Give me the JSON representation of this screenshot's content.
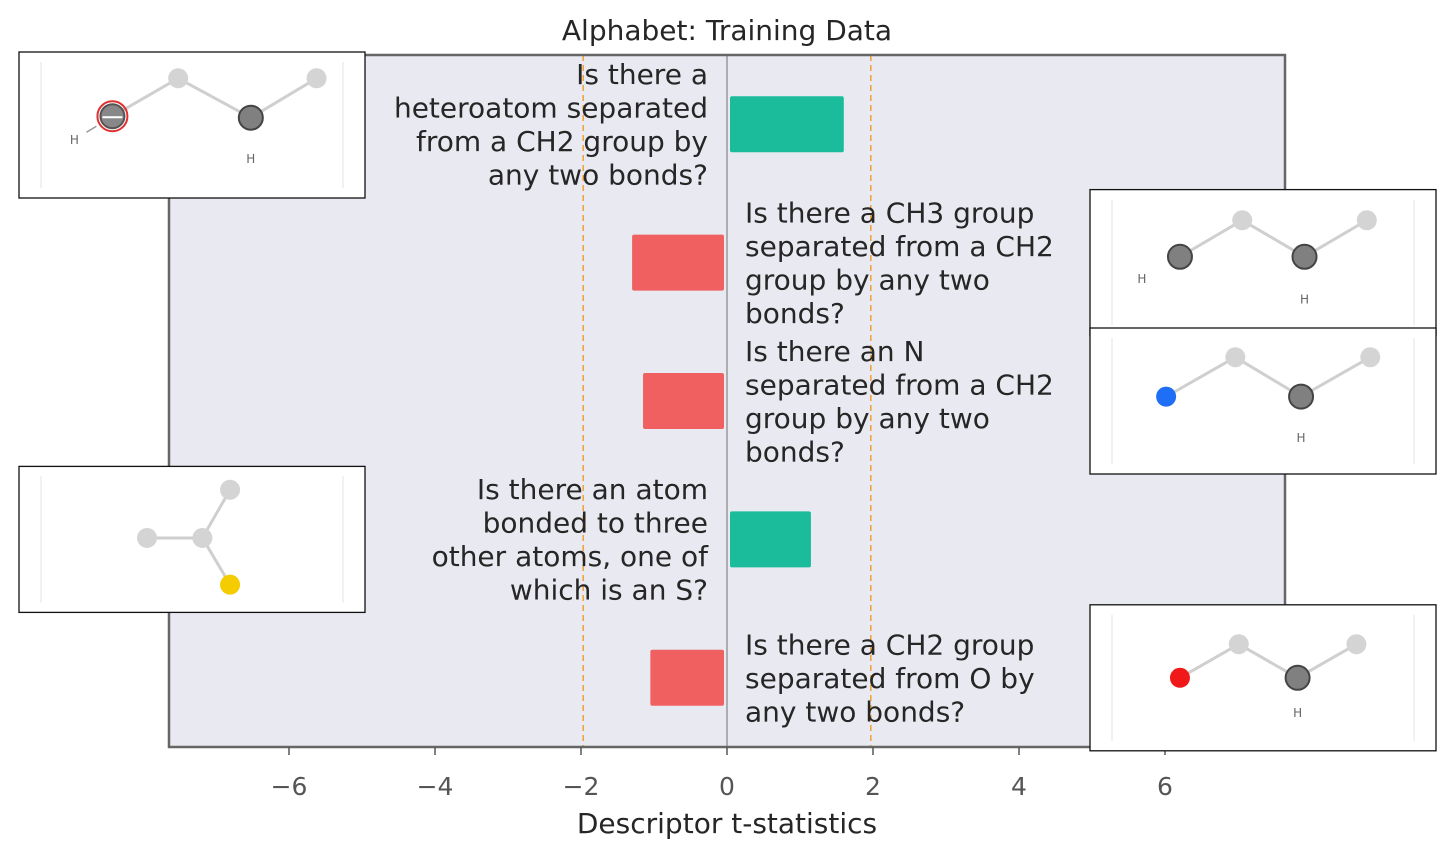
{
  "chart_data": {
    "type": "bar",
    "orientation": "horizontal",
    "title": "Alphabet: Training Data",
    "xlabel": "Descriptor t-statistics",
    "ylabel": "",
    "xlim": [
      -7.6,
      7.6
    ],
    "x_ticks": [
      -6,
      -4,
      -2,
      0,
      2,
      4,
      6
    ],
    "x_tick_labels": [
      "−6",
      "−4",
      "−2",
      "0",
      "2",
      "4",
      "6"
    ],
    "significance_lines": [
      -1.97,
      1.97
    ],
    "grid": false,
    "legend": "none",
    "colors": {
      "positive": "#1abc9c",
      "negative": "#f06060",
      "threshold": "#f0a030",
      "background": "#e9e9f1"
    },
    "bars": [
      {
        "label_lines": [
          "Is there a",
          "heteroatom separated",
          "from a CH2 group by",
          "any two bonds?"
        ],
        "value": 1.6,
        "molecule": {
          "name": "heteroatom-molecule",
          "side": "left",
          "atoms": [
            [
              0.27,
              0.44,
              "#888",
              "#555",
              1
            ],
            [
              0.46,
              0.18,
              "#d4d4d4",
              "#d4d4d4",
              0
            ],
            [
              0.67,
              0.45,
              "#808080",
              "#444",
              1
            ],
            [
              0.86,
              0.18,
              "#d4d4d4",
              "#d4d4d4",
              0
            ]
          ],
          "bonds": [
            [
              0,
              1
            ],
            [
              1,
              2
            ],
            [
              2,
              3
            ]
          ],
          "labels": [
            [
              "H",
              0.16,
              0.63,
              "#666"
            ],
            [
              "H",
              0.67,
              0.76,
              "#666"
            ]
          ]
        }
      },
      {
        "label_lines": [
          "Is there a CH3 group",
          "separated from a CH2",
          "group by any two",
          "bonds?"
        ],
        "value": -1.3,
        "molecule": {
          "name": "ch3-ch2-molecule",
          "side": "right",
          "atoms": [
            [
              0.26,
              0.46,
              "#808080",
              "#444",
              1
            ],
            [
              0.44,
              0.21,
              "#d4d4d4",
              "#d4d4d4",
              0
            ],
            [
              0.62,
              0.46,
              "#808080",
              "#444",
              1
            ],
            [
              0.8,
              0.21,
              "#d4d4d4",
              "#d4d4d4",
              0
            ]
          ],
          "bonds": [
            [
              0,
              1
            ],
            [
              1,
              2
            ],
            [
              2,
              3
            ]
          ],
          "labels": [
            [
              "H",
              0.15,
              0.64,
              "#666"
            ],
            [
              "H",
              0.62,
              0.78,
              "#666"
            ]
          ]
        }
      },
      {
        "label_lines": [
          "Is there an N",
          "separated from a CH2",
          "group by any two",
          "bonds?"
        ],
        "value": -1.15,
        "molecule": {
          "name": "n-ch2-molecule",
          "side": "right",
          "atoms": [
            [
              0.22,
              0.47,
              "#1e6ff5",
              "#1e6ff5",
              0
            ],
            [
              0.42,
              0.2,
              "#d4d4d4",
              "#d4d4d4",
              0
            ],
            [
              0.61,
              0.47,
              "#808080",
              "#444",
              1
            ],
            [
              0.81,
              0.2,
              "#d4d4d4",
              "#d4d4d4",
              0
            ]
          ],
          "bonds": [
            [
              0,
              1
            ],
            [
              1,
              2
            ],
            [
              2,
              3
            ]
          ],
          "labels": [
            [
              "H",
              0.61,
              0.78,
              "#666"
            ]
          ]
        }
      },
      {
        "label_lines": [
          "Is there an atom",
          "bonded to three",
          "other atoms, one of",
          "which is an S?"
        ],
        "value": 1.15,
        "molecule": {
          "name": "s-branch-molecule",
          "side": "left",
          "atoms": [
            [
              0.37,
              0.49,
              "#d4d4d4",
              "#d4d4d4",
              0
            ],
            [
              0.53,
              0.49,
              "#d4d4d4",
              "#d4d4d4",
              0
            ],
            [
              0.61,
              0.16,
              "#d4d4d4",
              "#d4d4d4",
              0
            ],
            [
              0.61,
              0.81,
              "#f5cc00",
              "#f5cc00",
              0
            ]
          ],
          "bonds": [
            [
              0,
              1
            ],
            [
              1,
              2
            ],
            [
              1,
              3
            ]
          ],
          "labels": []
        }
      },
      {
        "label_lines": [
          "Is there a CH2 group",
          "separated from O by",
          "any two bonds?"
        ],
        "value": -1.05,
        "molecule": {
          "name": "ch2-o-molecule",
          "side": "right",
          "atoms": [
            [
              0.26,
              0.5,
              "#f01818",
              "#f01818",
              0
            ],
            [
              0.43,
              0.27,
              "#d4d4d4",
              "#d4d4d4",
              0
            ],
            [
              0.6,
              0.5,
              "#808080",
              "#444",
              1
            ],
            [
              0.77,
              0.27,
              "#d4d4d4",
              "#d4d4d4",
              0
            ]
          ],
          "bonds": [
            [
              0,
              1
            ],
            [
              1,
              2
            ],
            [
              2,
              3
            ]
          ],
          "labels": [
            [
              "H",
              0.6,
              0.77,
              "#666"
            ]
          ]
        }
      }
    ]
  }
}
